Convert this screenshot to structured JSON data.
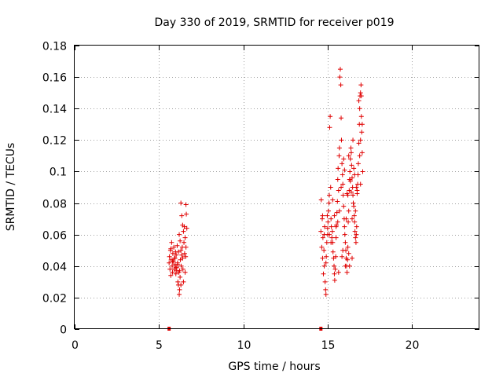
{
  "chart_data": {
    "type": "scatter",
    "title": "Day 330 of 2019, SRMTID for receiver p019",
    "xlabel": "GPS time / hours",
    "ylabel": "SRMTID / TECUs",
    "xlim": [
      0,
      24
    ],
    "ylim": [
      0,
      0.18
    ],
    "xticks": [
      0,
      5,
      10,
      15,
      20
    ],
    "xtick_labels": [
      "0",
      "5",
      "10",
      "15",
      "20"
    ],
    "yticks": [
      0,
      0.02,
      0.04,
      0.06,
      0.08,
      0.1,
      0.12,
      0.14,
      0.16,
      0.18
    ],
    "ytick_labels": [
      "0",
      "0.02",
      "0.04",
      "0.06",
      "0.08",
      "0.1",
      "0.12",
      "0.14",
      "0.16",
      "0.18"
    ],
    "grid": true,
    "marker": "plus",
    "marker_color": "#e00000",
    "zero_markers": [
      {
        "x": 5.6,
        "y": 0
      },
      {
        "x": 14.6,
        "y": 0
      }
    ],
    "series": [
      {
        "name": "SRMTID",
        "points": [
          [
            5.6,
            0.042
          ],
          [
            5.62,
            0.046
          ],
          [
            5.65,
            0.038
          ],
          [
            5.68,
            0.05
          ],
          [
            5.7,
            0.034
          ],
          [
            5.72,
            0.044
          ],
          [
            5.75,
            0.055
          ],
          [
            5.78,
            0.04
          ],
          [
            5.8,
            0.036
          ],
          [
            5.82,
            0.048
          ],
          [
            5.85,
            0.043
          ],
          [
            5.88,
            0.052
          ],
          [
            5.9,
            0.038
          ],
          [
            5.92,
            0.045
          ],
          [
            5.95,
            0.041
          ],
          [
            5.98,
            0.049
          ],
          [
            6.0,
            0.035
          ],
          [
            6.02,
            0.047
          ],
          [
            6.05,
            0.039
          ],
          [
            6.08,
            0.053
          ],
          [
            6.1,
            0.042
          ],
          [
            6.12,
            0.03
          ],
          [
            6.15,
            0.028
          ],
          [
            6.18,
            0.036
          ],
          [
            6.2,
            0.022
          ],
          [
            6.22,
            0.025
          ],
          [
            6.25,
            0.033
          ],
          [
            6.27,
            0.044
          ],
          [
            6.3,
            0.05
          ],
          [
            6.32,
            0.04
          ],
          [
            6.35,
            0.047
          ],
          [
            6.38,
            0.052
          ],
          [
            6.4,
            0.045
          ],
          [
            6.42,
            0.038
          ],
          [
            6.45,
            0.062
          ],
          [
            6.48,
            0.055
          ],
          [
            6.5,
            0.065
          ],
          [
            6.52,
            0.048
          ],
          [
            6.55,
            0.058
          ],
          [
            6.58,
            0.046
          ],
          [
            6.6,
            0.079
          ],
          [
            6.62,
            0.073
          ],
          [
            6.65,
            0.064
          ],
          [
            6.3,
            0.08
          ],
          [
            6.35,
            0.072
          ],
          [
            6.2,
            0.06
          ],
          [
            6.25,
            0.056
          ],
          [
            6.15,
            0.049
          ],
          [
            6.05,
            0.037
          ],
          [
            5.95,
            0.045
          ],
          [
            6.55,
            0.036
          ],
          [
            6.6,
            0.052
          ],
          [
            6.45,
            0.03
          ],
          [
            6.3,
            0.028
          ],
          [
            6.4,
            0.066
          ],
          [
            5.8,
            0.043
          ],
          [
            5.7,
            0.051
          ],
          [
            6.0,
            0.039
          ],
          [
            6.12,
            0.041
          ],
          [
            6.22,
            0.037
          ],
          [
            14.6,
            0.062
          ],
          [
            14.62,
            0.082
          ],
          [
            14.65,
            0.052
          ],
          [
            14.68,
            0.07
          ],
          [
            14.7,
            0.045
          ],
          [
            14.72,
            0.058
          ],
          [
            14.75,
            0.035
          ],
          [
            14.78,
            0.05
          ],
          [
            14.8,
            0.04
          ],
          [
            14.82,
            0.065
          ],
          [
            14.85,
            0.03
          ],
          [
            14.88,
            0.025
          ],
          [
            14.9,
            0.022
          ],
          [
            14.92,
            0.046
          ],
          [
            14.95,
            0.055
          ],
          [
            14.98,
            0.072
          ],
          [
            15.0,
            0.06
          ],
          [
            15.02,
            0.068
          ],
          [
            15.05,
            0.075
          ],
          [
            15.08,
            0.08
          ],
          [
            15.1,
            0.085
          ],
          [
            15.12,
            0.128
          ],
          [
            15.15,
            0.135
          ],
          [
            15.18,
            0.09
          ],
          [
            15.2,
            0.07
          ],
          [
            15.22,
            0.065
          ],
          [
            15.25,
            0.058
          ],
          [
            15.28,
            0.062
          ],
          [
            15.3,
            0.055
          ],
          [
            15.32,
            0.049
          ],
          [
            15.35,
            0.045
          ],
          [
            15.38,
            0.04
          ],
          [
            15.4,
            0.035
          ],
          [
            15.42,
            0.031
          ],
          [
            15.45,
            0.038
          ],
          [
            15.48,
            0.046
          ],
          [
            15.5,
            0.058
          ],
          [
            15.52,
            0.066
          ],
          [
            15.55,
            0.074
          ],
          [
            15.58,
            0.081
          ],
          [
            15.6,
            0.095
          ],
          [
            15.62,
            0.102
          ],
          [
            15.65,
            0.088
          ],
          [
            15.68,
            0.11
          ],
          [
            15.7,
            0.115
          ],
          [
            15.72,
            0.16
          ],
          [
            15.75,
            0.165
          ],
          [
            15.78,
            0.155
          ],
          [
            15.8,
            0.134
          ],
          [
            15.82,
            0.12
          ],
          [
            15.85,
            0.105
          ],
          [
            15.88,
            0.098
          ],
          [
            15.9,
            0.092
          ],
          [
            15.92,
            0.085
          ],
          [
            15.95,
            0.078
          ],
          [
            15.98,
            0.07
          ],
          [
            16.0,
            0.065
          ],
          [
            16.02,
            0.06
          ],
          [
            16.05,
            0.055
          ],
          [
            16.08,
            0.05
          ],
          [
            16.1,
            0.045
          ],
          [
            16.12,
            0.04
          ],
          [
            16.15,
            0.036
          ],
          [
            16.18,
            0.044
          ],
          [
            16.2,
            0.052
          ],
          [
            16.22,
            0.068
          ],
          [
            16.25,
            0.075
          ],
          [
            16.28,
            0.088
          ],
          [
            16.3,
            0.095
          ],
          [
            16.32,
            0.1
          ],
          [
            16.35,
            0.108
          ],
          [
            16.38,
            0.115
          ],
          [
            16.4,
            0.112
          ],
          [
            16.42,
            0.104
          ],
          [
            16.45,
            0.096
          ],
          [
            16.48,
            0.09
          ],
          [
            16.5,
            0.085
          ],
          [
            16.52,
            0.08
          ],
          [
            16.55,
            0.078
          ],
          [
            16.58,
            0.072
          ],
          [
            16.6,
            0.068
          ],
          [
            16.62,
            0.062
          ],
          [
            16.65,
            0.058
          ],
          [
            16.68,
            0.055
          ],
          [
            16.7,
            0.06
          ],
          [
            16.72,
            0.065
          ],
          [
            16.75,
            0.086
          ],
          [
            16.78,
            0.092
          ],
          [
            16.8,
            0.098
          ],
          [
            16.82,
            0.105
          ],
          [
            16.85,
            0.118
          ],
          [
            16.88,
            0.13
          ],
          [
            16.9,
            0.14
          ],
          [
            16.92,
            0.148
          ],
          [
            16.95,
            0.15
          ],
          [
            16.98,
            0.155
          ],
          [
            17.0,
            0.135
          ],
          [
            17.02,
            0.125
          ],
          [
            17.05,
            0.112
          ],
          [
            17.08,
            0.1
          ],
          [
            16.3,
            0.04
          ],
          [
            16.1,
            0.07
          ],
          [
            15.9,
            0.05
          ],
          [
            15.7,
            0.075
          ],
          [
            15.5,
            0.065
          ],
          [
            15.3,
            0.082
          ],
          [
            15.1,
            0.06
          ],
          [
            16.5,
            0.12
          ],
          [
            16.7,
            0.09
          ],
          [
            16.9,
            0.11
          ],
          [
            16.95,
            0.12
          ],
          [
            17.0,
            0.148
          ],
          [
            16.85,
            0.145
          ],
          [
            16.6,
            0.098
          ],
          [
            16.4,
            0.087
          ],
          [
            16.2,
            0.085
          ],
          [
            16.0,
            0.101
          ],
          [
            15.8,
            0.09
          ],
          [
            15.6,
            0.068
          ],
          [
            15.4,
            0.072
          ],
          [
            15.2,
            0.055
          ],
          [
            15.0,
            0.064
          ],
          [
            14.9,
            0.042
          ],
          [
            14.8,
            0.06
          ],
          [
            14.7,
            0.072
          ],
          [
            16.45,
            0.045
          ],
          [
            16.25,
            0.048
          ],
          [
            16.05,
            0.04
          ],
          [
            15.85,
            0.046
          ],
          [
            15.65,
            0.036
          ],
          [
            16.15,
            0.086
          ],
          [
            16.35,
            0.094
          ],
          [
            16.55,
            0.102
          ],
          [
            16.75,
            0.088
          ],
          [
            16.95,
            0.092
          ],
          [
            17.05,
            0.13
          ],
          [
            16.65,
            0.075
          ],
          [
            16.45,
            0.07
          ],
          [
            16.25,
            0.11
          ],
          [
            15.95,
            0.108
          ]
        ]
      }
    ]
  }
}
